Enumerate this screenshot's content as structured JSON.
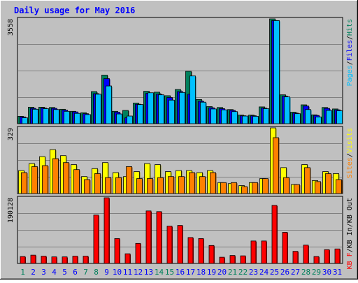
{
  "chart_data": {
    "type": "bar",
    "title": "Daily usage for May 2016",
    "x": [
      "1",
      "2",
      "3",
      "4",
      "5",
      "6",
      "7",
      "8",
      "9",
      "10",
      "11",
      "12",
      "13",
      "14",
      "15",
      "16",
      "17",
      "18",
      "19",
      "20",
      "21",
      "22",
      "23",
      "24",
      "25",
      "26",
      "27",
      "28",
      "29",
      "30",
      "31"
    ],
    "weekend_days": [
      "1",
      "7",
      "8",
      "14",
      "15",
      "21",
      "22",
      "28",
      "29"
    ],
    "panels": [
      {
        "id": "hits-files-pages",
        "ymax_label": "3558",
        "ymax": 3558,
        "axis_labels": [
          "Pages",
          "Files",
          "Hits"
        ],
        "separator": "/",
        "series": [
          {
            "name": "Hits",
            "color": "#00805c",
            "values": [
              250,
              560,
              560,
              550,
              490,
              420,
              370,
              1090,
              1650,
              420,
              450,
              700,
              1100,
              1070,
              950,
              1160,
              1780,
              820,
              580,
              550,
              480,
              290,
              290,
              570,
              3558,
              980,
              390,
              640,
              300,
              550,
              500
            ]
          },
          {
            "name": "Files",
            "color": "#0000ff",
            "values": [
              230,
              520,
              530,
              520,
              460,
              400,
              340,
              1020,
              1530,
              390,
              200,
              660,
              1030,
              1000,
              890,
              1090,
              1000,
              760,
              540,
              510,
              450,
              270,
              270,
              530,
              3500,
              930,
              360,
              600,
              280,
              520,
              470
            ]
          },
          {
            "name": "Pages",
            "color": "#00c0ff",
            "values": [
              200,
              490,
              510,
              480,
              420,
              350,
              310,
              1000,
              1280,
              330,
              260,
              650,
              1050,
              980,
              800,
              1060,
              1620,
              730,
              500,
              470,
              410,
              260,
              250,
              510,
              3500,
              910,
              340,
              480,
              230,
              450,
              440
            ]
          }
        ]
      },
      {
        "id": "visits-sites",
        "ymax_label": "329",
        "ymax": 329,
        "axis_labels": [
          "Sites",
          "Visits"
        ],
        "separator": "/",
        "series": [
          {
            "name": "Visits",
            "color": "#ffff00",
            "values": [
              115,
              150,
              185,
              220,
              190,
              145,
              85,
              125,
              155,
              105,
              85,
              110,
              150,
              145,
              110,
              115,
              115,
              105,
              115,
              55,
              50,
              40,
              55,
              75,
              329,
              130,
              45,
              145,
              65,
              110,
              100
            ]
          },
          {
            "name": "Sites",
            "color": "#ff8000",
            "values": [
              105,
              135,
              140,
              175,
              155,
              120,
              70,
              100,
              80,
              80,
              135,
              75,
              75,
              80,
              85,
              85,
              105,
              85,
              105,
              55,
              55,
              35,
              55,
              75,
              280,
              80,
              45,
              130,
              60,
              100,
              70
            ]
          }
        ]
      },
      {
        "id": "kb-in-out",
        "ymax_label": "190128",
        "ymax": 190128,
        "axis_labels": [
          "KB F",
          "KB In",
          "KB Out"
        ],
        "separator": "/",
        "series": [
          {
            "name": "KB F",
            "color": "#ff0000",
            "values": [
              20000,
              24000,
              21000,
              19000,
              19000,
              21000,
              21000,
              140000,
              190128,
              72000,
              28000,
              58000,
              152000,
              150000,
              108000,
              110000,
              75000,
              72000,
              52000,
              18000,
              23000,
              22000,
              65000,
              65000,
              168000,
              90000,
              35000,
              53000,
              20000,
              40000,
              42000
            ]
          }
        ]
      }
    ],
    "colors": {
      "background": "#c0c0c0",
      "title": "#0000ff",
      "weekday_label": "#0000ff",
      "weekend_label": "#00805c",
      "grid": "#808080",
      "outline": "#000000"
    }
  }
}
